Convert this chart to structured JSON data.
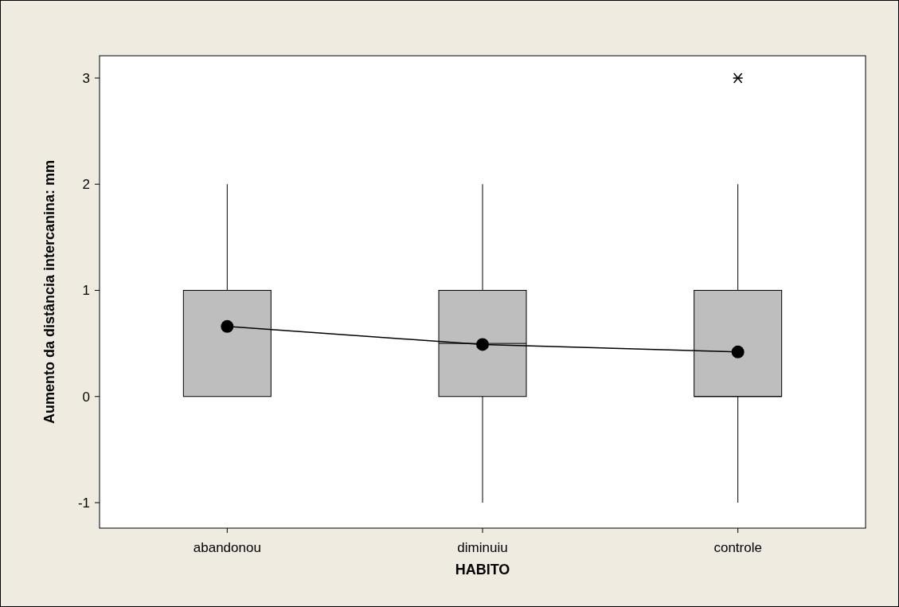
{
  "chart_data": {
    "type": "box",
    "xlabel": "HABITO",
    "ylabel": "Aumento da distância intercanina: mm",
    "categories": [
      "abandonou",
      "diminuiu",
      "controle"
    ],
    "series": [
      {
        "color": "#bebebe",
        "boxes": [
          {
            "low": 0,
            "q1": 0,
            "median": 1,
            "q3": 1,
            "high": 2
          },
          {
            "low": -1,
            "q1": 0,
            "median": 0.5,
            "q3": 1,
            "high": 2
          },
          {
            "low": -1,
            "q1": 0,
            "median": 0,
            "q3": 1,
            "high": 2,
            "outliers": [
              3
            ]
          }
        ]
      },
      {
        "type": "line",
        "color": "#000000",
        "values": [
          0.66,
          0.49,
          0.42
        ]
      }
    ],
    "marker": "circle",
    "ylim": [
      -1.24,
      3.21
    ],
    "yticks": [
      -1,
      0,
      1,
      2,
      3
    ],
    "grid": false
  }
}
